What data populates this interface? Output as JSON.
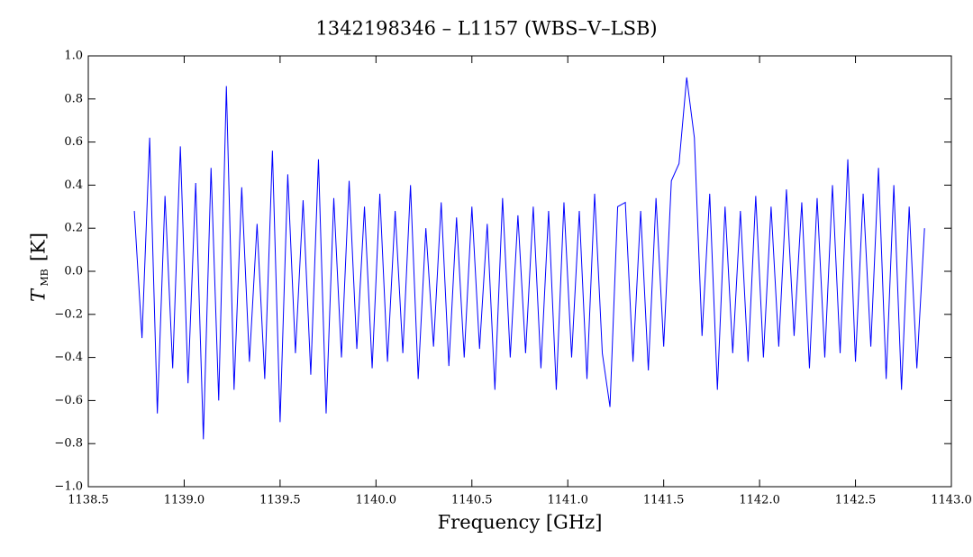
{
  "chart_data": {
    "type": "line",
    "title": "1342198346 – L1157 (WBS–V–LSB)",
    "x_label": "Frequency [GHz]",
    "y_label": {
      "symbol": "T",
      "subscript": "MB",
      "unit": "[K]"
    },
    "xlim": [
      1138.5,
      1143.0
    ],
    "ylim": [
      -1.0,
      1.0
    ],
    "xticks": [
      {
        "value": 1138.5,
        "label": "1138.5"
      },
      {
        "value": 1139,
        "label": "1139.0"
      },
      {
        "value": 1139.5,
        "label": "1139.5"
      },
      {
        "value": 1140,
        "label": "1140.0"
      },
      {
        "value": 1140.5,
        "label": "1140.5"
      },
      {
        "value": 1141,
        "label": "1141.0"
      },
      {
        "value": 1141.5,
        "label": "1141.5"
      },
      {
        "value": 1142,
        "label": "1142.0"
      },
      {
        "value": 1142.5,
        "label": "1142.5"
      },
      {
        "value": 1143,
        "label": "1143.0"
      }
    ],
    "yticks": [
      {
        "value": -1,
        "label": "−1.0"
      },
      {
        "value": -0.8,
        "label": "−0.8"
      },
      {
        "value": -0.6,
        "label": "−0.6"
      },
      {
        "value": -0.4,
        "label": "−0.4"
      },
      {
        "value": -0.2,
        "label": "−0.2"
      },
      {
        "value": 0,
        "label": "0.0"
      },
      0.2,
      0.4,
      0.6,
      0.8,
      {
        "value": 1,
        "label": "1.0"
      }
    ],
    "x": [
      1138.74,
      1138.78,
      1138.82,
      1138.86,
      1138.9,
      1138.94,
      1138.98,
      1139.02,
      1139.06,
      1139.1,
      1139.14,
      1139.18,
      1139.22,
      1139.26,
      1139.3,
      1139.34,
      1139.38,
      1139.42,
      1139.46,
      1139.5,
      1139.54,
      1139.58,
      1139.62,
      1139.66,
      1139.7,
      1139.74,
      1139.78,
      1139.82,
      1139.86,
      1139.9,
      1139.94,
      1139.98,
      1140.02,
      1140.06,
      1140.1,
      1140.14,
      1140.18,
      1140.22,
      1140.26,
      1140.3,
      1140.34,
      1140.38,
      1140.42,
      1140.46,
      1140.5,
      1140.54,
      1140.58,
      1140.62,
      1140.66,
      1140.7,
      1140.74,
      1140.78,
      1140.82,
      1140.86,
      1140.9,
      1140.94,
      1140.98,
      1141.02,
      1141.06,
      1141.1,
      1141.14,
      1141.18,
      1141.22,
      1141.26,
      1141.3,
      1141.34,
      1141.38,
      1141.42,
      1141.46,
      1141.5,
      1141.54,
      1141.58,
      1141.62,
      1141.66,
      1141.7,
      1141.74,
      1141.78,
      1141.82,
      1141.86,
      1141.9,
      1141.94,
      1141.98,
      1142.02,
      1142.06,
      1142.1,
      1142.14,
      1142.18,
      1142.22,
      1142.26,
      1142.3,
      1142.34,
      1142.38,
      1142.42,
      1142.46,
      1142.5,
      1142.54,
      1142.58,
      1142.62,
      1142.66,
      1142.7,
      1142.74,
      1142.78,
      1142.82,
      1142.86
    ],
    "series": [
      {
        "color": "#0000ff",
        "values": [
          0.28,
          -0.31,
          0.62,
          -0.66,
          0.35,
          -0.45,
          0.58,
          -0.52,
          0.41,
          -0.78,
          0.48,
          -0.6,
          0.86,
          -0.55,
          0.39,
          -0.42,
          0.22,
          -0.5,
          0.56,
          -0.7,
          0.45,
          -0.38,
          0.33,
          -0.48,
          0.52,
          -0.66,
          0.34,
          -0.4,
          0.42,
          -0.36,
          0.3,
          -0.45,
          0.36,
          -0.42,
          0.28,
          -0.38,
          0.4,
          -0.5,
          0.2,
          -0.35,
          0.32,
          -0.44,
          0.25,
          -0.4,
          0.3,
          -0.36,
          0.22,
          -0.55,
          0.34,
          -0.4,
          0.26,
          -0.38,
          0.3,
          -0.45,
          0.28,
          -0.55,
          0.32,
          -0.4,
          0.28,
          -0.5,
          0.36,
          -0.38,
          -0.63,
          0.3,
          0.32,
          -0.42,
          0.28,
          -0.46,
          0.34,
          -0.35,
          0.42,
          0.5,
          0.9,
          0.62,
          -0.3,
          0.36,
          -0.55,
          0.3,
          -0.38,
          0.28,
          -0.42,
          0.35,
          -0.4,
          0.3,
          -0.35,
          0.38,
          -0.3,
          0.32,
          -0.45,
          0.34,
          -0.4,
          0.4,
          -0.38,
          0.52,
          -0.42,
          0.36,
          -0.35,
          0.48,
          -0.5,
          0.4,
          -0.55,
          0.3,
          -0.45,
          0.2
        ]
      }
    ]
  }
}
